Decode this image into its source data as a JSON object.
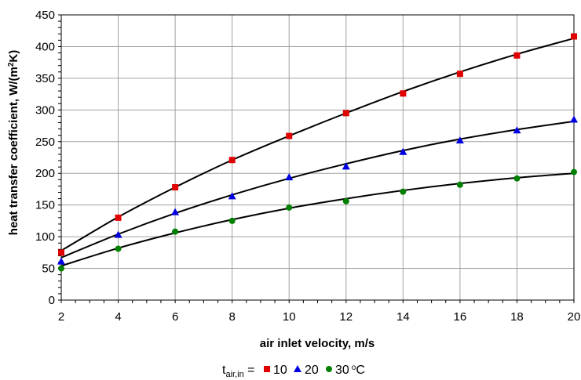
{
  "chart_data": {
    "type": "scatter",
    "title": "",
    "xlabel": "air inlet velocity, m/s",
    "ylabel_parts": {
      "main": "heat transfer coefficient, W/(m",
      "sup": "2",
      "end": "K)"
    },
    "xlim": [
      2,
      20
    ],
    "ylim": [
      0,
      450
    ],
    "x_ticks": [
      "2",
      "4",
      "6",
      "8",
      "10",
      "12",
      "14",
      "16",
      "18",
      "20"
    ],
    "y_ticks": [
      "0",
      "50",
      "100",
      "150",
      "200",
      "250",
      "300",
      "350",
      "400",
      "450"
    ],
    "grid": true,
    "legend": {
      "placement": "bottom",
      "prefix_main": "t",
      "prefix_sub": "air,in",
      "prefix_eq": " = ",
      "unit_main": "o",
      "unit_end": "C"
    },
    "series": [
      {
        "name": "10",
        "marker": "square",
        "color": "#e00000",
        "x": [
          2,
          4,
          6,
          8,
          10,
          12,
          14,
          16,
          18,
          20
        ],
        "y": [
          75,
          130,
          178,
          221,
          259,
          295,
          326,
          357,
          386,
          416
        ],
        "fit": [
          78,
          131,
          178,
          221,
          259,
          295,
          329,
          360,
          388,
          413
        ]
      },
      {
        "name": "20",
        "marker": "triangle",
        "color": "#0000e0",
        "x": [
          2,
          4,
          6,
          8,
          10,
          12,
          14,
          16,
          18,
          20
        ],
        "y": [
          61,
          103,
          139,
          164,
          194,
          211,
          234,
          252,
          268,
          285
        ],
        "fit": [
          67,
          104,
          137,
          166,
          192,
          215,
          236,
          254,
          269,
          282
        ]
      },
      {
        "name": "30",
        "marker": "circle",
        "color": "#008000",
        "x": [
          2,
          4,
          6,
          8,
          10,
          12,
          14,
          16,
          18,
          20
        ],
        "y": [
          50,
          81,
          108,
          125,
          146,
          156,
          171,
          182,
          192,
          202
        ],
        "fit": [
          54,
          82,
          106,
          127,
          145,
          160,
          173,
          184,
          193,
          200
        ]
      }
    ]
  }
}
